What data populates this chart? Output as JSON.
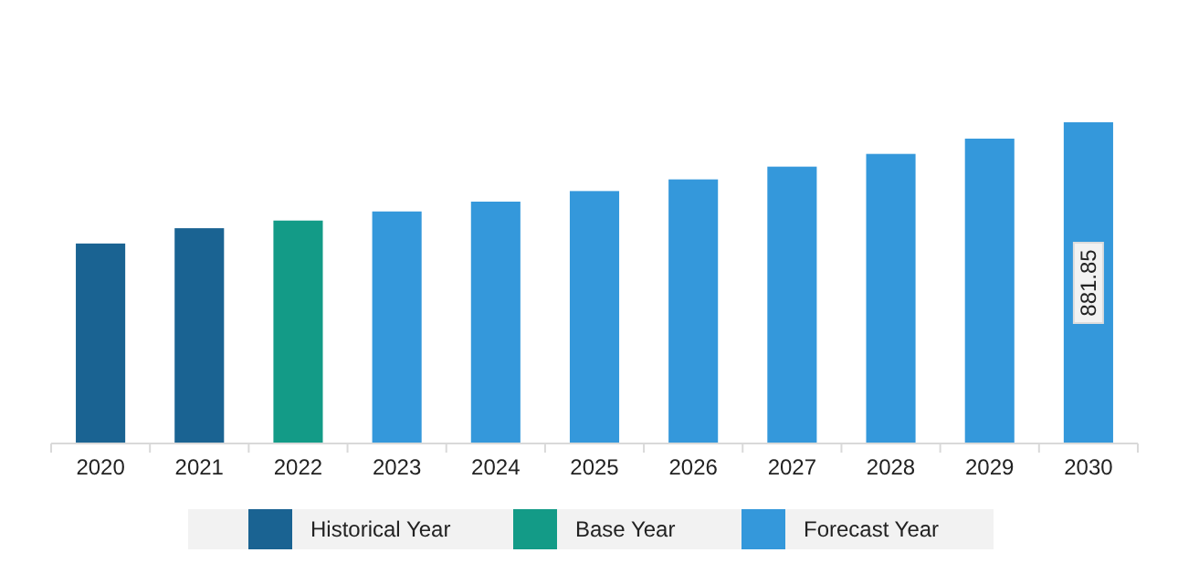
{
  "chart_data": {
    "type": "bar",
    "categories": [
      "2020",
      "2021",
      "2022",
      "2023",
      "2024",
      "2025",
      "2026",
      "2027",
      "2028",
      "2029",
      "2030"
    ],
    "series": [
      {
        "name": "Historical Year",
        "color": "#1a6392",
        "values": [
          549,
          591,
          null,
          null,
          null,
          null,
          null,
          null,
          null,
          null,
          null
        ]
      },
      {
        "name": "Base Year",
        "color": "#139b87",
        "values": [
          null,
          null,
          612,
          null,
          null,
          null,
          null,
          null,
          null,
          null,
          null
        ]
      },
      {
        "name": "Forecast Year",
        "color": "#3498db",
        "values": [
          null,
          null,
          null,
          637,
          664,
          693,
          725,
          760,
          795,
          837,
          881.85
        ],
        "value_labels": [
          null,
          null,
          null,
          null,
          null,
          null,
          null,
          null,
          null,
          null,
          "881.85"
        ]
      }
    ],
    "legend": "bottom"
  }
}
